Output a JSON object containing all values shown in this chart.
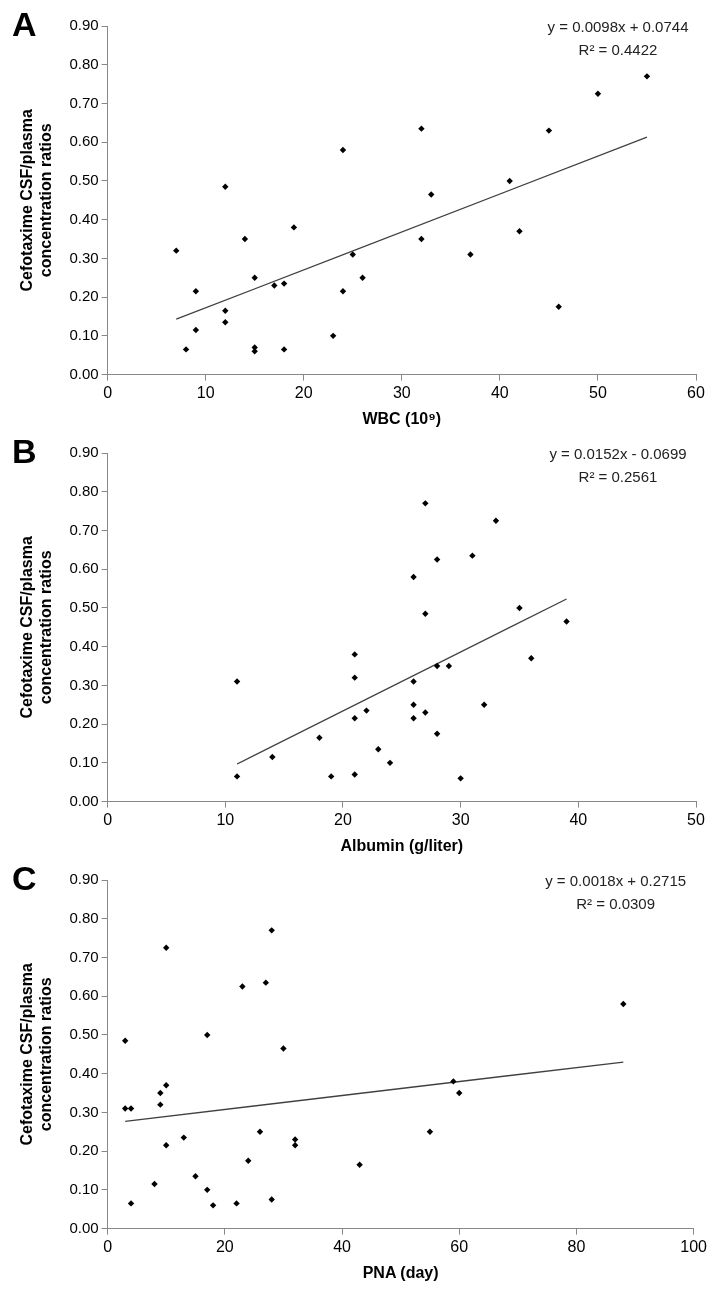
{
  "chart_data": [
    {
      "type": "scatter",
      "title": "A",
      "xlabel": "WBC (10⁹)",
      "ylabel": "Cefotaxime CSF/plasma concentration ratios",
      "marker": "diamond",
      "grid": false,
      "legend": false,
      "xlim": [
        0,
        60
      ],
      "xticks": [
        0,
        10,
        20,
        30,
        40,
        50,
        60
      ],
      "ylim": [
        0,
        0.9
      ],
      "yticks": [
        {
          "value": 0,
          "label": "0.00"
        },
        {
          "value": 0.1,
          "label": "0.10"
        },
        {
          "value": 0.2,
          "label": "0.20"
        },
        {
          "value": 0.3,
          "label": "0.30"
        },
        {
          "value": 0.4,
          "label": "0.40"
        },
        {
          "value": 0.5,
          "label": "0.50"
        },
        {
          "value": 0.6,
          "label": "0.60"
        },
        {
          "value": 0.7,
          "label": "0.70"
        },
        {
          "value": 0.8,
          "label": "0.80"
        },
        {
          "value": 0.9,
          "label": "0.90"
        }
      ],
      "annotations": [
        "y = 0.0098x + 0.0744",
        "R² = 0.4422"
      ],
      "series": [
        {
          "color": "#000000",
          "x": [
            7,
            8,
            9,
            9,
            12,
            12,
            12,
            14,
            15,
            15,
            15,
            17,
            18,
            18,
            19,
            23,
            24,
            24,
            25,
            26,
            32,
            32,
            33,
            37,
            41,
            42,
            45,
            46,
            50,
            55
          ],
          "values": [
            0.32,
            0.065,
            0.215,
            0.115,
            0.485,
            0.165,
            0.135,
            0.35,
            0.25,
            0.07,
            0.06,
            0.23,
            0.235,
            0.065,
            0.38,
            0.1,
            0.58,
            0.215,
            0.31,
            0.25,
            0.635,
            0.35,
            0.465,
            0.31,
            0.5,
            0.37,
            0.63,
            0.175,
            0.725,
            0.77
          ]
        },
        {
          "type": "line",
          "marker": "none",
          "color": "#404040",
          "line_style": "solid",
          "x": [
            7,
            55
          ],
          "values": [
            0.143,
            0.613
          ]
        }
      ]
    },
    {
      "type": "scatter",
      "title": "B",
      "xlabel": "Albumin (g/liter)",
      "ylabel": "Cefotaxime CSF/plasma concentration ratios",
      "marker": "diamond",
      "grid": false,
      "legend": false,
      "xlim": [
        0,
        50
      ],
      "xticks": [
        0,
        10,
        20,
        30,
        40,
        50
      ],
      "ylim": [
        0,
        0.9
      ],
      "yticks": [
        {
          "value": 0,
          "label": "0.00"
        },
        {
          "value": 0.1,
          "label": "0.10"
        },
        {
          "value": 0.2,
          "label": "0.20"
        },
        {
          "value": 0.3,
          "label": "0.30"
        },
        {
          "value": 0.4,
          "label": "0.40"
        },
        {
          "value": 0.5,
          "label": "0.50"
        },
        {
          "value": 0.6,
          "label": "0.60"
        },
        {
          "value": 0.7,
          "label": "0.70"
        },
        {
          "value": 0.8,
          "label": "0.80"
        },
        {
          "value": 0.9,
          "label": "0.90"
        }
      ],
      "annotations": [
        "y = 0.0152x - 0.0699",
        "R² = 0.2561"
      ],
      "series": [
        {
          "color": "#000000",
          "x": [
            11,
            11,
            14,
            18,
            19,
            21,
            21,
            21,
            21,
            22,
            23,
            24,
            26,
            26,
            26,
            26,
            27,
            27,
            27,
            28,
            28,
            28,
            29,
            30,
            31,
            32,
            33,
            35,
            36,
            39
          ],
          "values": [
            0.31,
            0.065,
            0.115,
            0.165,
            0.065,
            0.38,
            0.32,
            0.215,
            0.07,
            0.235,
            0.135,
            0.1,
            0.58,
            0.31,
            0.25,
            0.215,
            0.77,
            0.485,
            0.23,
            0.625,
            0.35,
            0.175,
            0.35,
            0.06,
            0.635,
            0.25,
            0.725,
            0.5,
            0.37,
            0.465
          ]
        },
        {
          "type": "line",
          "marker": "none",
          "color": "#404040",
          "line_style": "solid",
          "x": [
            11,
            39
          ],
          "values": [
            0.097,
            0.523
          ]
        }
      ]
    },
    {
      "type": "scatter",
      "title": "C",
      "xlabel": "PNA (day)",
      "ylabel": "Cefotaxime CSF/plasma concentration ratios",
      "marker": "diamond",
      "grid": false,
      "legend": false,
      "xlim": [
        0,
        100
      ],
      "xticks": [
        0,
        20,
        40,
        60,
        80,
        100
      ],
      "ylim": [
        0,
        0.9
      ],
      "yticks": [
        {
          "value": 0,
          "label": "0.00"
        },
        {
          "value": 0.1,
          "label": "0.10"
        },
        {
          "value": 0.2,
          "label": "0.20"
        },
        {
          "value": 0.3,
          "label": "0.30"
        },
        {
          "value": 0.4,
          "label": "0.40"
        },
        {
          "value": 0.5,
          "label": "0.50"
        },
        {
          "value": 0.6,
          "label": "0.60"
        },
        {
          "value": 0.7,
          "label": "0.70"
        },
        {
          "value": 0.8,
          "label": "0.80"
        },
        {
          "value": 0.9,
          "label": "0.90"
        }
      ],
      "annotations": [
        "y = 0.0018x + 0.2715",
        "R² = 0.0309"
      ],
      "series": [
        {
          "color": "#000000",
          "x": [
            3,
            3,
            4,
            4,
            8,
            9,
            9,
            10,
            10,
            10,
            13,
            15,
            17,
            17,
            18,
            22,
            23,
            24,
            26,
            27,
            28,
            28,
            30,
            32,
            32,
            43,
            55,
            59,
            60,
            88
          ],
          "values": [
            0.485,
            0.31,
            0.31,
            0.065,
            0.115,
            0.35,
            0.32,
            0.725,
            0.37,
            0.215,
            0.235,
            0.135,
            0.5,
            0.1,
            0.06,
            0.065,
            0.625,
            0.175,
            0.25,
            0.635,
            0.77,
            0.075,
            0.465,
            0.23,
            0.215,
            0.165,
            0.25,
            0.38,
            0.35,
            0.58
          ]
        },
        {
          "type": "line",
          "marker": "none",
          "color": "#404040",
          "line_style": "solid",
          "x": [
            3,
            88
          ],
          "values": [
            0.277,
            0.43
          ]
        }
      ]
    }
  ]
}
